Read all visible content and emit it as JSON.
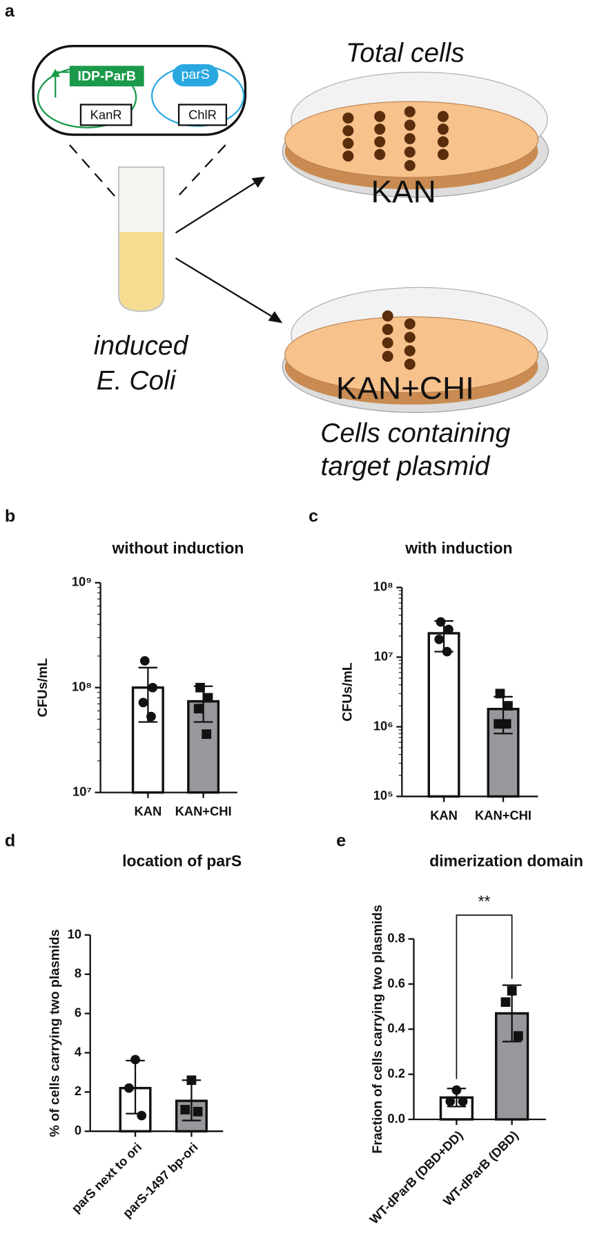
{
  "panel_labels": [
    "a",
    "b",
    "c",
    "d",
    "e"
  ],
  "diagram": {
    "protein": "IDP-ParB",
    "site": "parS",
    "marker1": "KanR",
    "marker2": "ChlR",
    "top_plate_caption": "Total cells",
    "top_plate_label": "KAN",
    "bottom_plate_label": "KAN+CHI",
    "tube_caption_1": "induced",
    "tube_caption_2": "E. Coli",
    "bottom_caption_1": "Cells containing",
    "bottom_caption_2": "target plasmid"
  },
  "chart_data": [
    {
      "type": "bar",
      "title": "without induction",
      "ylabel": "CFUs/mL",
      "categories": [
        "KAN",
        "KAN+CHI"
      ],
      "values": [
        100000000,
        74000000
      ],
      "error_bounds": [
        [
          47000000,
          155000000
        ],
        [
          47000000,
          103000000
        ]
      ],
      "points": [
        [
          180000000,
          100000000,
          72000000,
          53000000
        ],
        [
          100000000,
          80000000,
          63000000,
          36000000
        ]
      ],
      "markers": [
        "circle",
        "square"
      ],
      "colors": [
        "#ffffff",
        "#98989c"
      ],
      "log_y": true,
      "ylim": [
        10000000,
        1000000000
      ],
      "yticks": [
        {
          "value": 10000000,
          "label": "10⁷"
        },
        {
          "value": 100000000,
          "label": "10⁸"
        },
        {
          "value": 1000000000,
          "label": "10⁹"
        }
      ]
    },
    {
      "type": "bar",
      "title": "with induction",
      "ylabel": "CFUs/mL",
      "categories": [
        "KAN",
        "KAN+CHI"
      ],
      "values": [
        22000000,
        1800000
      ],
      "error_bounds": [
        [
          12000000,
          33000000
        ],
        [
          800000,
          2700000
        ]
      ],
      "points": [
        [
          32000000,
          25000000,
          18000000,
          12000000
        ],
        [
          3000000,
          2000000,
          1100000,
          1100000
        ]
      ],
      "markers": [
        "circle",
        "square"
      ],
      "colors": [
        "#ffffff",
        "#98989c"
      ],
      "log_y": true,
      "ylim": [
        100000,
        100000000
      ],
      "yticks": [
        {
          "value": 100000,
          "label": "10⁵"
        },
        {
          "value": 1000000,
          "label": "10⁶"
        },
        {
          "value": 10000000,
          "label": "10⁷"
        },
        {
          "value": 100000000,
          "label": "10⁸"
        }
      ]
    },
    {
      "type": "bar",
      "title": "location of parS",
      "ylabel": "% of cells carrying two plasmids",
      "categories": [
        "parS next to ori",
        "parS-1497 bp-ori"
      ],
      "values": [
        2.2,
        1.55
      ],
      "error_bounds": [
        [
          0.9,
          3.6
        ],
        [
          0.55,
          2.6
        ]
      ],
      "points": [
        [
          3.65,
          2.2,
          0.8
        ],
        [
          2.6,
          1.1,
          1.0
        ]
      ],
      "markers": [
        "circle",
        "square"
      ],
      "colors": [
        "#ffffff",
        "#98989c"
      ],
      "rotate_categories": true,
      "ylim": [
        0,
        10
      ],
      "yticks": [
        0,
        2,
        4,
        6,
        8,
        10
      ]
    },
    {
      "type": "bar",
      "title": "dimerization domain",
      "ylabel": "Fraction of cells carrying two plasmids",
      "categories": [
        "WT-dParB (DBD+DD)",
        "WT-dParB (DBD)"
      ],
      "values": [
        0.097,
        0.47
      ],
      "error_bounds": [
        [
          0.057,
          0.137
        ],
        [
          0.345,
          0.595
        ]
      ],
      "points": [
        [
          0.13,
          0.08,
          0.08
        ],
        [
          0.57,
          0.52,
          0.37
        ]
      ],
      "markers": [
        "circle",
        "square"
      ],
      "colors": [
        "#ffffff",
        "#98989c"
      ],
      "rotate_categories": true,
      "significance": "**",
      "ylim": [
        0,
        0.8
      ],
      "yticks": [
        {
          "value": 0,
          "label": "0.0"
        },
        0.2,
        0.4,
        0.6,
        0.8
      ]
    }
  ]
}
